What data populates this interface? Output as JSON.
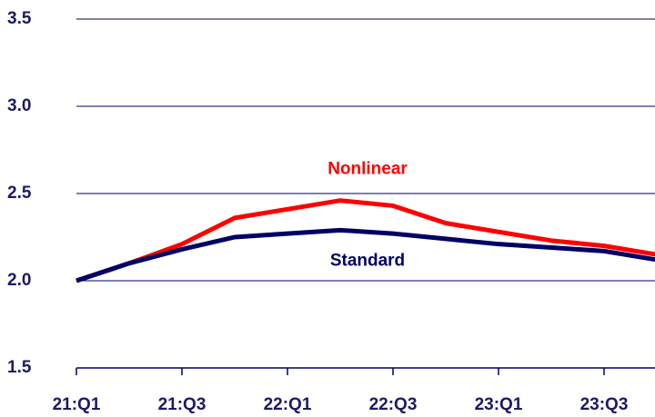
{
  "chart_data": {
    "type": "line",
    "categories": [
      "21:Q1",
      null,
      "21:Q3",
      null,
      "22:Q1",
      null,
      "22:Q3",
      null,
      "23:Q1",
      null,
      "23:Q3",
      null
    ],
    "series": [
      {
        "name": "Nonlinear",
        "color": "#ff0000",
        "values": [
          2.0,
          2.1,
          2.21,
          2.36,
          2.41,
          2.46,
          2.43,
          2.33,
          2.28,
          2.23,
          2.2,
          2.15
        ]
      },
      {
        "name": "Standard",
        "color": "#000066",
        "values": [
          2.0,
          2.1,
          2.18,
          2.25,
          2.27,
          2.29,
          2.27,
          2.24,
          2.21,
          2.19,
          2.17,
          2.12
        ]
      }
    ],
    "ylim": [
      1.5,
      3.5
    ],
    "yticks": [
      1.5,
      {
        "value": 2,
        "label": "2.0"
      },
      2.5,
      {
        "value": 3,
        "label": "3.0"
      },
      3.5
    ],
    "grid": true
  }
}
